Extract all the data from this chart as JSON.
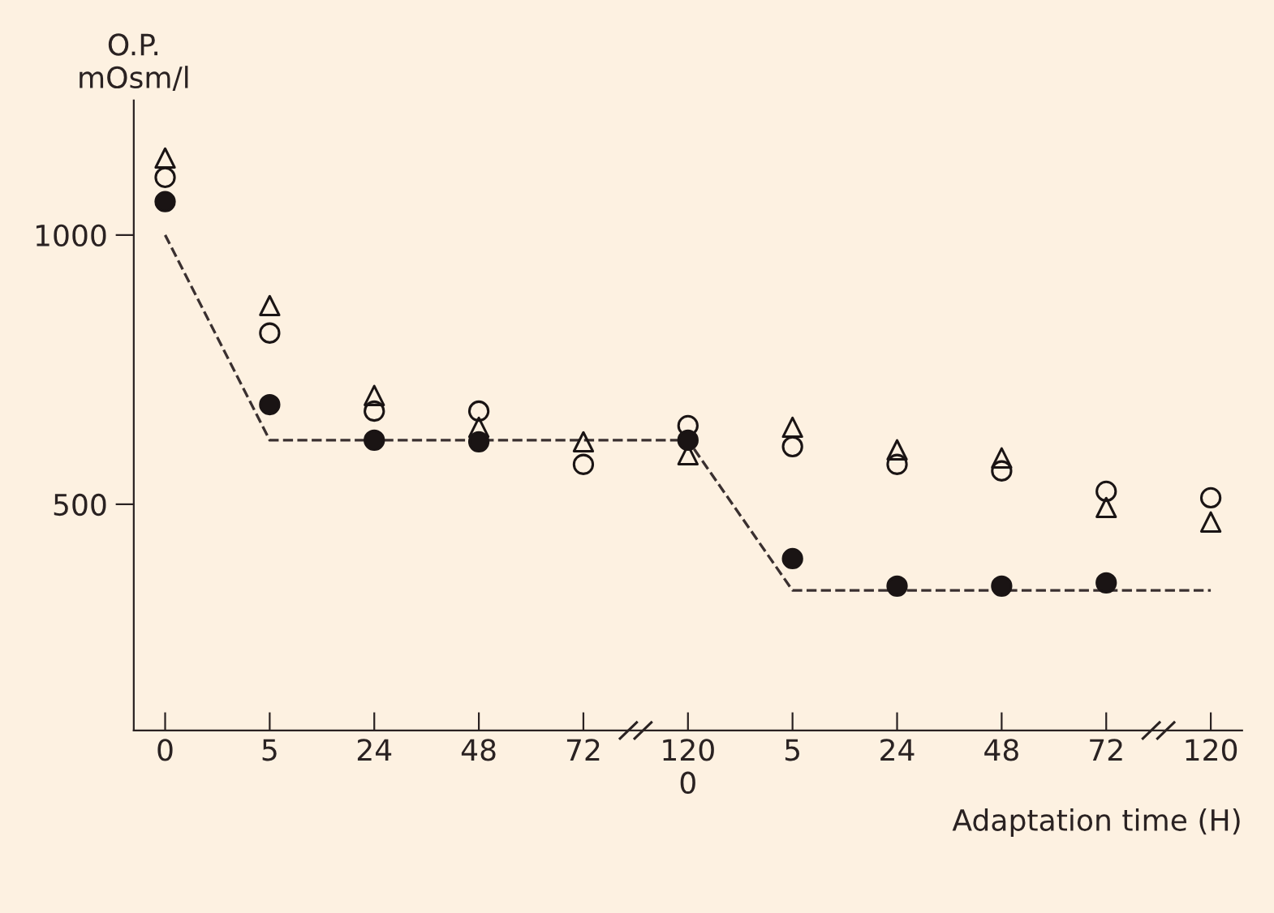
{
  "chart_data": {
    "type": "scatter",
    "ylabel": "O.P.\nmOsm/l",
    "xlabel": "Adaptation time (H)",
    "categories": [
      "0",
      "5",
      "24",
      "48",
      "72",
      "120\n0",
      "5",
      "24",
      "48",
      "72",
      "120"
    ],
    "series": [
      {
        "marker": "triangle",
        "color": "#1a1414",
        "values": [
          1143,
          869,
          702,
          643,
          616,
          592,
          643,
          601,
          586,
          494,
          467
        ]
      },
      {
        "marker": "circle",
        "color": "#1a1414",
        "values": [
          1107,
          818,
          673,
          673,
          574,
          646,
          607,
          574,
          562,
          524,
          512
        ]
      },
      {
        "marker": "circle",
        "color": "#1a1414",
        "values": [
          1062,
          685,
          619,
          616,
          null,
          619,
          399,
          348,
          348,
          354,
          null
        ]
      },
      {
        "type": "line",
        "line_style": "dashed",
        "marker": "none",
        "color": "#3a3030",
        "values": [
          1000,
          619,
          619,
          619,
          619,
          619,
          340,
          340,
          340,
          340,
          340
        ]
      }
    ],
    "ylim": [
      80,
      1250
    ],
    "yticks": [
      500,
      1000
    ],
    "grid": false,
    "legend": false
  }
}
